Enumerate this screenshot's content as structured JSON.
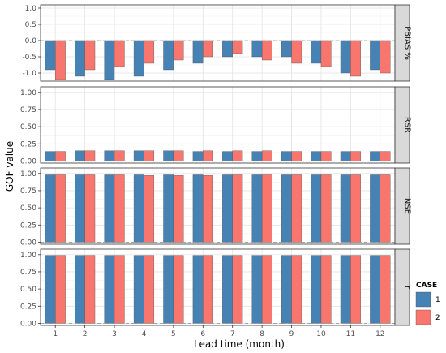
{
  "chart_data": {
    "type": "bar",
    "xlabel": "Lead time (month)",
    "ylabel": "GOF value",
    "categories": [
      "1",
      "2",
      "3",
      "4",
      "5",
      "6",
      "7",
      "8",
      "9",
      "10",
      "11",
      "12"
    ],
    "legend": {
      "title": "CASE",
      "placement": "right"
    },
    "colors": {
      "1": "#4682B4",
      "2": "#F8766D"
    },
    "series_names": [
      "1",
      "2"
    ],
    "grid": true,
    "reference_line": 0,
    "panels": [
      {
        "label": "PBIAS %",
        "ylim": [
          -1.25,
          1.1
        ],
        "yticks": [
          -1.0,
          -0.5,
          0.0,
          0.5,
          1.0
        ],
        "ytick_labels": [
          "-1.0",
          "-0.5",
          "0.0",
          "0.5",
          "1.0"
        ],
        "series": [
          {
            "name": "1",
            "values": [
              -0.9,
              -1.1,
              -1.2,
              -1.1,
              -0.9,
              -0.7,
              -0.5,
              -0.5,
              -0.5,
              -0.7,
              -1.0,
              -0.9
            ]
          },
          {
            "name": "2",
            "values": [
              -1.2,
              -0.9,
              -0.8,
              -0.7,
              -0.6,
              -0.5,
              -0.4,
              -0.6,
              -0.7,
              -0.8,
              -1.1,
              -1.0
            ]
          }
        ]
      },
      {
        "label": "RSR",
        "ylim": [
          -0.03,
          1.08
        ],
        "yticks": [
          0.0,
          0.25,
          0.5,
          0.75,
          1.0
        ],
        "ytick_labels": [
          "0.00",
          "0.25",
          "0.50",
          "0.75",
          "1.00"
        ],
        "series": [
          {
            "name": "1",
            "values": [
              0.14,
              0.15,
              0.15,
              0.15,
              0.15,
              0.14,
              0.14,
              0.14,
              0.14,
              0.14,
              0.14,
              0.14
            ]
          },
          {
            "name": "2",
            "values": [
              0.14,
              0.15,
              0.15,
              0.15,
              0.15,
              0.15,
              0.15,
              0.15,
              0.14,
              0.14,
              0.14,
              0.14
            ]
          }
        ]
      },
      {
        "label": "NSE",
        "ylim": [
          -0.03,
          1.08
        ],
        "yticks": [
          0.0,
          0.25,
          0.5,
          0.75,
          1.0
        ],
        "ytick_labels": [
          "0.00",
          "0.25",
          "0.50",
          "0.75",
          "1.00"
        ],
        "series": [
          {
            "name": "1",
            "values": [
              0.98,
              0.98,
              0.98,
              0.98,
              0.98,
              0.98,
              0.98,
              0.98,
              0.98,
              0.98,
              0.98,
              0.98
            ]
          },
          {
            "name": "2",
            "values": [
              0.98,
              0.98,
              0.98,
              0.97,
              0.97,
              0.97,
              0.98,
              0.98,
              0.98,
              0.98,
              0.98,
              0.98
            ]
          }
        ]
      },
      {
        "label": "r",
        "ylim": [
          -0.03,
          1.08
        ],
        "yticks": [
          0.0,
          0.25,
          0.5,
          0.75,
          1.0
        ],
        "ytick_labels": [
          "0.00",
          "0.25",
          "0.50",
          "0.75",
          "1.00"
        ],
        "series": [
          {
            "name": "1",
            "values": [
              0.99,
              0.99,
              0.99,
              0.99,
              0.99,
              0.99,
              0.99,
              0.99,
              0.99,
              0.99,
              0.99,
              0.99
            ]
          },
          {
            "name": "2",
            "values": [
              0.99,
              0.99,
              0.99,
              0.99,
              0.99,
              0.99,
              0.99,
              0.99,
              0.99,
              0.99,
              0.99,
              0.99
            ]
          }
        ]
      }
    ]
  }
}
